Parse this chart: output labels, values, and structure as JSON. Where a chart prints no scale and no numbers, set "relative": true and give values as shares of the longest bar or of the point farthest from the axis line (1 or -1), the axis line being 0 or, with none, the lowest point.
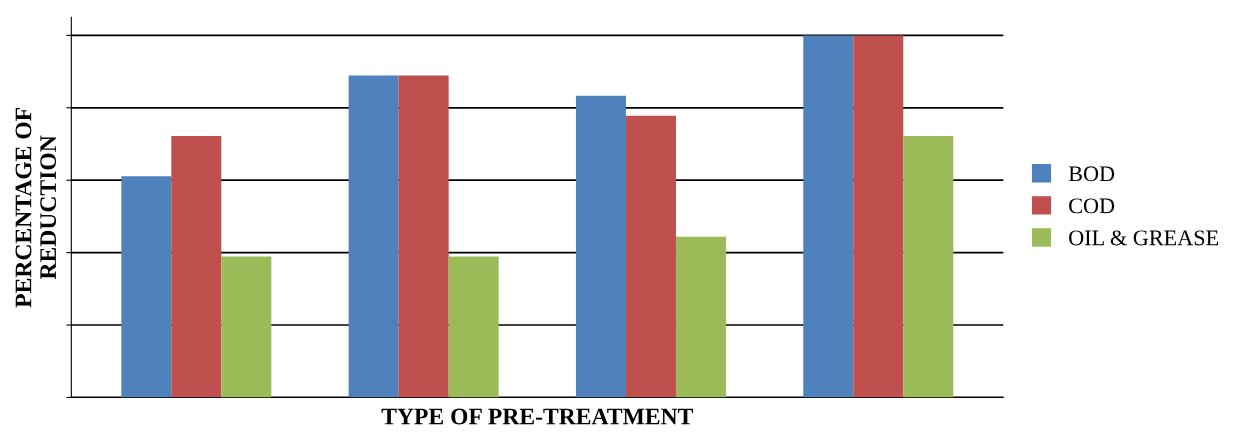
{
  "chart_data": {
    "type": "bar",
    "relative": true,
    "xlabel": "TYPE OF PRE-TREATMENT",
    "ylabel": "PERCENTAGE OF\nREDUCTION",
    "categories": [
      null,
      null,
      null,
      null
    ],
    "series": [
      {
        "name": "BOD",
        "color": "#4f81bd",
        "values": [
          0.611,
          0.889,
          0.833,
          1
        ]
      },
      {
        "name": "COD",
        "color": "#c0504d",
        "values": [
          0.722,
          0.889,
          0.778,
          1
        ]
      },
      {
        "name": "OIL & GREASE",
        "color": "#9bbb59",
        "values": [
          0.389,
          0.389,
          0.444,
          0.722
        ]
      }
    ],
    "grid": "y",
    "legend": "right"
  }
}
